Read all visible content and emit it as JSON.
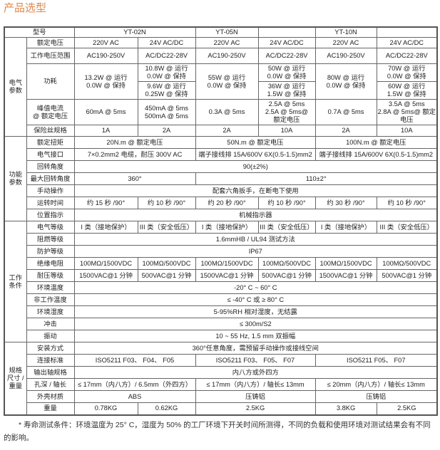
{
  "title": "产品选型",
  "header": {
    "label": "型号",
    "models": [
      "YT-02N",
      "YT-05N",
      "",
      "YT-10N",
      ""
    ]
  },
  "sections": [
    {
      "group": "电气\n参数",
      "rows": [
        {
          "label": "额定电压",
          "values": [
            "220V AC",
            "24V AC/DC",
            "220V AC",
            "24V AC/DC",
            "220V AC",
            "24V AC/DC"
          ]
        },
        {
          "label": "工作电压范围",
          "values": [
            "AC190-250V",
            "AC/DC22-28V",
            "AC190-250V",
            "AC/DC22-28V",
            "AC190-250V",
            "AC/DC22-28V"
          ]
        },
        {
          "label": "功耗",
          "values": [
            "13.2W @ 运行\n0.0W @ 保持",
            [
              "10.8W @ 运行\n0.0W @ 保持",
              "9.6W @ 运行\n0.25W @ 保持"
            ],
            "55W @ 运行\n0.0W @ 保持",
            [
              "50W @ 运行\n0.0W @ 保持",
              "36W @ 运行\n1.5W @ 保持"
            ],
            "80W @ 运行\n0.0W @ 保持",
            [
              "70W @ 运行\n0.0W @ 保持",
              "60W @ 运行\n1.5W @ 保持"
            ]
          ]
        },
        {
          "label": "峰值电流\n@ 额定电压",
          "values": [
            "60mA @ 5ms",
            "450mA @ 5ms\n500mA @ 5ms",
            "0.3A @ 5ms",
            "2.5A @ 5ms\n2.5A @ 5ms@\n额定电压",
            "0.7A @ 5ms",
            "3.5A @ 5ms\n2.8A @ 5ms@ 额定\n电压"
          ]
        },
        {
          "label": "保险丝规格",
          "values": [
            "1A",
            "2A",
            "2A",
            "10A",
            "2A",
            "10A"
          ]
        }
      ]
    },
    {
      "group": "功能\n参数",
      "rows": [
        {
          "label": "额定扭矩",
          "values": [
            "20N.m @ 额定电压",
            "50N.m @ 额定电压",
            "100N.m @ 额定电压"
          ]
        },
        {
          "label": "电气接口",
          "values": [
            "7×0.2mm2 电缆，耐压 300V AC",
            "端子接线排 15A/600V 6X(0.5-1.5)mm2",
            "端子接线排 15A/600V 6X(0.5-1.5)mm2"
          ]
        },
        {
          "label": "回转角度",
          "values": [
            "90(±2%)"
          ]
        },
        {
          "label": "最大回转角度",
          "values": [
            "360°",
            "110±2°"
          ]
        },
        {
          "label": "手动操作",
          "values": [
            "配套六角扳手，在断电下使用"
          ]
        },
        {
          "label": "运转时间",
          "values": [
            "约 15 秒 /90°",
            "约 10 秒 /90°",
            "约 20 秒 /90°",
            "约 10 秒 /90°",
            "约 30 秒 /90°",
            "约 10 秒 /90°"
          ]
        },
        {
          "label": "位置指示",
          "values": [
            "机械指示器"
          ]
        }
      ]
    },
    {
      "group": "工作\n条件",
      "rows": [
        {
          "label": "电气等级",
          "values": [
            "I 类（接地保护）",
            "III 类（安全低压）",
            "I 类（接地保护）",
            "III 类（安全低压）",
            "I 类（接地保护）",
            "III 类（安全低压）"
          ]
        },
        {
          "label": "阻燃等级",
          "values": [
            "1.6mmHB / UL94 测试方法"
          ]
        },
        {
          "label": "防护等级",
          "values": [
            "IP67"
          ]
        },
        {
          "label": "绝缘电阻",
          "values": [
            "100MΩ/1500VDC",
            "100MΩ/500VDC",
            "100MΩ/1500VDC",
            "100MΩ/500VDC",
            "100MΩ/1500VDC",
            "100MΩ/500VDC"
          ]
        },
        {
          "label": "耐压等级",
          "values": [
            "1500VAC@1 分钟",
            "500VAC@1 分钟",
            "1500VAC@1 分钟",
            "500VAC@1 分钟",
            "1500VAC@1 分钟",
            "500VAC@1 分钟"
          ]
        },
        {
          "label": "环境温度",
          "values": [
            "-20° C ~ 60° C"
          ]
        },
        {
          "label": "非工作温度",
          "values": [
            "≤ -40° C 或 ≥ 80° C"
          ]
        },
        {
          "label": "环境湿度",
          "values": [
            "5-95%RH 相对湿度，无结露"
          ]
        },
        {
          "label": "冲击",
          "values": [
            "≤ 300m/S2"
          ]
        },
        {
          "label": "振动",
          "values": [
            "10 ~ 55 Hz, 1.5 mm 双振幅"
          ]
        }
      ]
    },
    {
      "group": "规格\n尺寸 /\n重量",
      "rows": [
        {
          "label": "安装方式",
          "values": [
            "360°任意角度，需预留手动操作或接线空间"
          ]
        },
        {
          "label": "连接标准",
          "values": [
            "ISO5211 F03、 F04、 F05",
            "ISO5211 F03、 F05、 F07",
            "ISO5211  F05、 F07"
          ]
        },
        {
          "label": "输出轴规格",
          "values": [
            "内八方或外四方"
          ]
        },
        {
          "label": "孔深 / 轴长",
          "values": [
            "≤ 17mm（内八方）/ 6.5mm（外四方）",
            "≤ 17mm（内八方）/ 轴长≤ 13mm",
            "≤ 20mm（内八方）/ 轴长≤ 13mm"
          ]
        },
        {
          "label": "外壳材质",
          "values": [
            "ABS",
            "压铸铝",
            "压铸铝"
          ]
        },
        {
          "label": "重量",
          "values": [
            "0.78KG",
            "0.62KG",
            "2.5KG",
            "3.8KG",
            "2.5KG"
          ]
        }
      ]
    }
  ],
  "footnote": "* 寿命测试条件：环境温度为 25°  C，湿度为 50% 的工厂环境下开关时间所测得，不同的负载和使用环境对测试结果会有不同的影响。",
  "colors": {
    "title": "#e0874a",
    "border": "#555555"
  }
}
